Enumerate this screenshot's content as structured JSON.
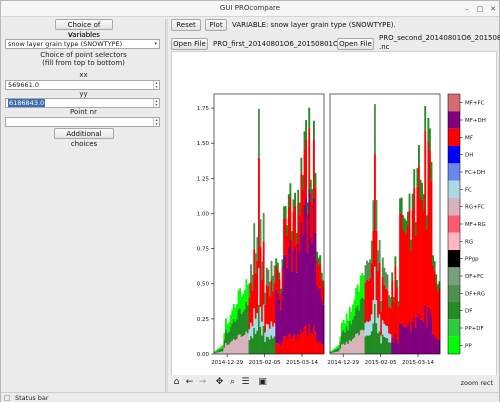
{
  "window": {
    "title": "GUI PROcompare"
  },
  "left": {
    "choice_vars_btn": "Choice of variables",
    "variable_label": "Variable:",
    "variable_value": "snow layer grain type (SNOWTYPE)",
    "point_sel_label1": "Choice of point selectors",
    "point_sel_label2": "(fill from top to bottom)",
    "xx_label": "xx",
    "xx_value": "569661.0",
    "yy_label": "yy",
    "yy_value": "6186843.0",
    "point_label": "Point nr",
    "point_value": "",
    "additional_btn": "Additional choices"
  },
  "top": {
    "reset": "Reset",
    "plot": "Plot",
    "variable_info": "VARIABLE: snow layer grain type (SNOWTYPE).",
    "open_file1": "Open File",
    "file1": "PRO_first_20140801O6_20150801O6.nc",
    "open_file2": "Open File",
    "file2_line1": "PRO_second_20140801O6_20150801O6",
    "file2_line2": ".nc"
  },
  "toolbar": {
    "zoom_status": "zoom rect"
  },
  "status": {
    "text": "Status bar"
  },
  "chart_data": {
    "type": "area",
    "ylim": [
      0,
      1.85
    ],
    "y_ticks": [
      "0.00",
      "0.25",
      "0.50",
      "0.75",
      "1.00",
      "1.25",
      "1.50",
      "1.75"
    ],
    "x_ticks_left": [
      "2014-12-29",
      "2015-02-05",
      "2015-03-14"
    ],
    "x_ticks_right": [
      "2014-12-29",
      "2015-02-05",
      "2015-03-14"
    ],
    "legend": [
      {
        "label": "MF+FC",
        "color": "#d66d73"
      },
      {
        "label": "MF+DH",
        "color": "#800080"
      },
      {
        "label": "MF",
        "color": "#ff0000"
      },
      {
        "label": "DH",
        "color": "#0000ff"
      },
      {
        "label": "FC+DH",
        "color": "#6a86f0"
      },
      {
        "label": "FC",
        "color": "#add8e6"
      },
      {
        "label": "RG+FC",
        "color": "#d9b3bc"
      },
      {
        "label": "MF+RG",
        "color": "#ff5a6e"
      },
      {
        "label": "RG",
        "color": "#ffb6c1"
      },
      {
        "label": "PPgp",
        "color": "#000000"
      },
      {
        "label": "DF+FC",
        "color": "#7aa07a"
      },
      {
        "label": "DF+RG",
        "color": "#4f8f4f"
      },
      {
        "label": "DF",
        "color": "#228b22"
      },
      {
        "label": "PP+DF",
        "color": "#2ecc40"
      },
      {
        "label": "PP",
        "color": "#00ff00"
      }
    ]
  }
}
